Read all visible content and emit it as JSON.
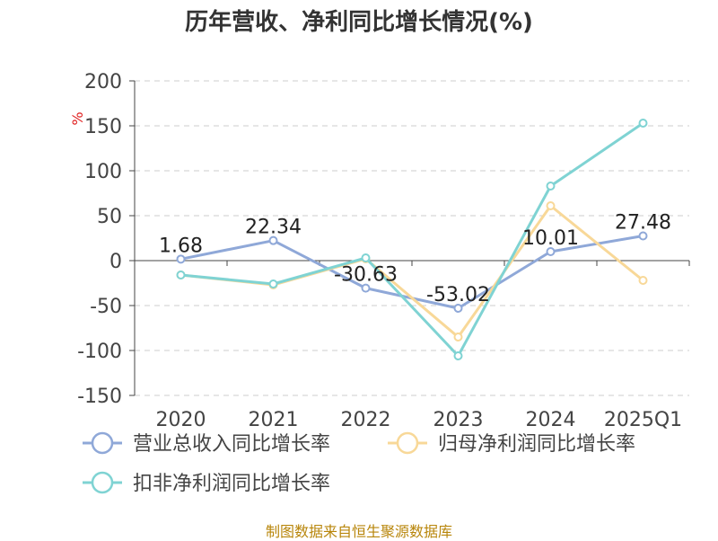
{
  "title": "历年营收、净利同比增长情况(%)",
  "source": "制图数据来自恒生聚源数据库",
  "chart_data": {
    "type": "line",
    "unit": "%",
    "categories": [
      "2020",
      "2021",
      "2022",
      "2023",
      "2024",
      "2025Q1"
    ],
    "ylim": [
      -150,
      200
    ],
    "yticks": [
      200,
      150,
      100,
      50,
      0,
      -50,
      -100,
      -150
    ],
    "grid": true,
    "legend_position": "bottom",
    "series": [
      {
        "name": "营业总收入同比增长率",
        "color": "#8fa8d8",
        "values": [
          1.68,
          22.34,
          -30.63,
          -53.02,
          10.01,
          27.48
        ],
        "labels": [
          "1.68",
          "22.34",
          "-30.63",
          "-53.02",
          "10.01",
          "27.48"
        ]
      },
      {
        "name": "归母净利润同比增长率",
        "color": "#f8d898",
        "values": [
          -16,
          -27,
          2,
          -85,
          61,
          -22
        ]
      },
      {
        "name": "扣非净利润同比增长率",
        "color": "#7fd3d3",
        "values": [
          -16,
          -26,
          3,
          -106,
          83,
          153
        ]
      }
    ]
  }
}
